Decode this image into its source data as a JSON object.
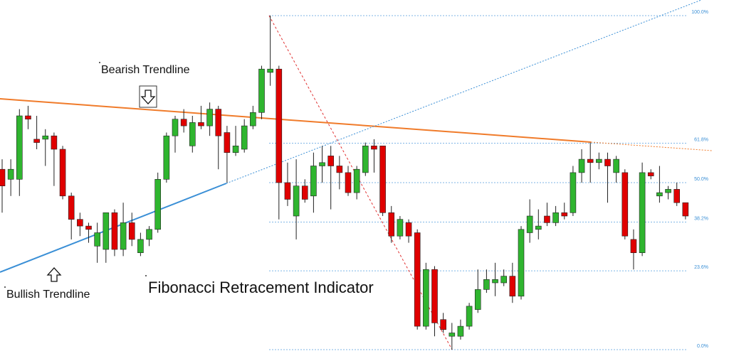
{
  "chart_data": {
    "type": "candlestick",
    "annotations": [
      "Bearish Trendline",
      "Bullish Trendline",
      "Fibonacci Retracement Indicator"
    ],
    "ylim": [
      0,
      100
    ],
    "yticks": [
      {
        "value": 100,
        "label": "100.0%"
      },
      {
        "value": 61.8,
        "label": "61.8%"
      },
      {
        "value": 50,
        "label": "50.0%"
      },
      {
        "value": 38.2,
        "label": "38.2%"
      },
      {
        "value": 23.6,
        "label": "23.6%"
      },
      {
        "value": 0,
        "label": "0.0%"
      }
    ],
    "up_color": "#2fb52f",
    "down_color": "#e00000",
    "open": [
      54,
      51,
      51,
      70,
      63,
      63,
      64,
      60,
      46,
      39,
      37,
      31,
      30,
      41,
      30,
      38,
      29,
      33,
      36,
      51,
      64,
      69,
      61,
      68,
      67,
      72,
      65,
      59,
      60,
      67,
      71,
      83,
      84,
      50,
      40,
      49,
      46,
      55,
      58,
      55,
      53,
      47,
      53,
      61,
      61,
      41,
      34,
      38,
      35,
      7,
      24,
      9,
      4,
      4,
      7,
      12,
      18,
      20,
      20,
      22,
      16,
      35,
      36,
      40,
      38,
      41,
      41,
      53,
      57,
      56,
      57,
      53,
      53,
      33,
      29,
      53,
      46,
      47,
      48,
      44
    ],
    "high": [
      57,
      57,
      72,
      73,
      70,
      66,
      65,
      61,
      47,
      41,
      38,
      38,
      41,
      42,
      44,
      41,
      35,
      37,
      53,
      65,
      70,
      72,
      70,
      73,
      74,
      73,
      67,
      67,
      69,
      73,
      85,
      100,
      85,
      56,
      57,
      51,
      59,
      61,
      61,
      58,
      55,
      55,
      62,
      63,
      61,
      43,
      40,
      39,
      36,
      26,
      25,
      11,
      8,
      9,
      14,
      24,
      24,
      26,
      24,
      26,
      37,
      45,
      42,
      44,
      43,
      44,
      55,
      60,
      62,
      59,
      59,
      58,
      54,
      36,
      56,
      54,
      55,
      49,
      50,
      44
    ],
    "low": [
      41,
      46,
      46,
      66,
      60,
      55,
      49,
      45,
      33,
      34,
      32,
      26,
      26,
      28,
      28,
      31,
      28,
      31,
      35,
      50,
      59,
      65,
      59,
      66,
      64,
      54,
      50,
      58,
      59,
      66,
      69,
      79,
      39,
      43,
      33,
      44,
      41,
      50,
      42,
      48,
      46,
      45,
      52,
      53,
      40,
      32,
      33,
      32,
      6,
      6,
      4,
      5,
      0,
      3,
      6,
      11,
      17,
      16,
      19,
      14,
      15,
      32,
      33,
      37,
      37,
      39,
      40,
      50,
      50,
      54,
      44,
      50,
      33,
      24,
      28,
      51,
      44,
      45,
      43,
      39
    ],
    "close": [
      49,
      54,
      70,
      69,
      62,
      64,
      60,
      46,
      39,
      37,
      36,
      35,
      41,
      30,
      38,
      33,
      33,
      36,
      51,
      64,
      69,
      67,
      68,
      67,
      72,
      64,
      59,
      61,
      67,
      71,
      84,
      84,
      50,
      45,
      49,
      45,
      55,
      56,
      55,
      53,
      47,
      54,
      61,
      60,
      41,
      34,
      39,
      34,
      7,
      24,
      8,
      6,
      5,
      7,
      13,
      18,
      21,
      21,
      22,
      16,
      36,
      40,
      37,
      38,
      41,
      40,
      53,
      57,
      56,
      57,
      55,
      57,
      34,
      29,
      53,
      52,
      47,
      48,
      44,
      40
    ]
  }
}
